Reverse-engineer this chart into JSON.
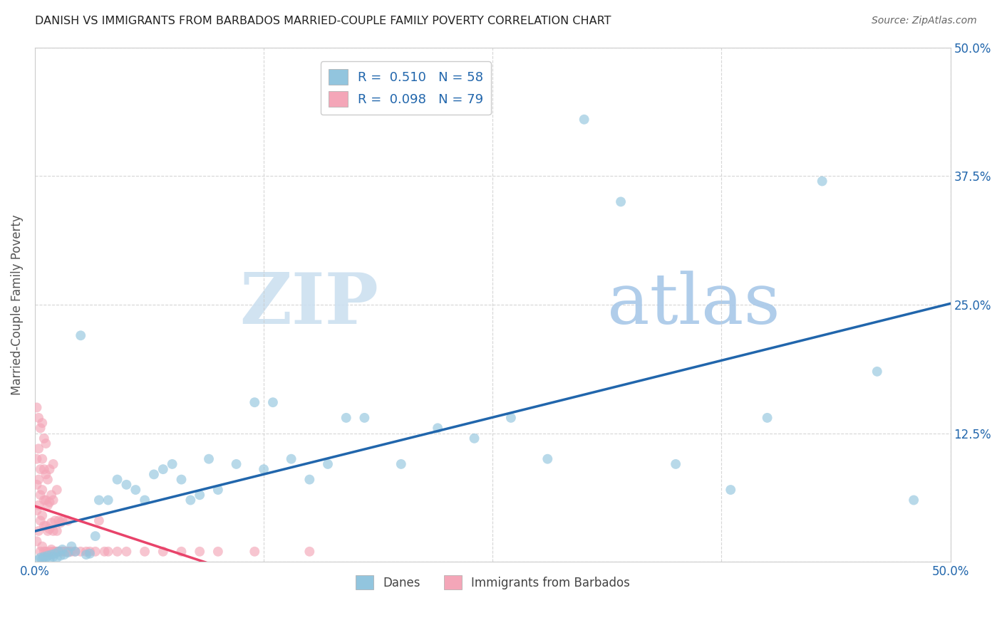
{
  "title": "DANISH VS IMMIGRANTS FROM BARBADOS MARRIED-COUPLE FAMILY POVERTY CORRELATION CHART",
  "source": "Source: ZipAtlas.com",
  "ylabel": "Married-Couple Family Poverty",
  "xlabel_danes": "Danes",
  "xlabel_barbados": "Immigrants from Barbados",
  "xlim": [
    0,
    0.5
  ],
  "ylim": [
    0,
    0.5
  ],
  "danes_R": 0.51,
  "danes_N": 58,
  "barbados_R": 0.098,
  "barbados_N": 79,
  "danes_color": "#92c5de",
  "barbados_color": "#f4a6b8",
  "danes_line_color": "#2166ac",
  "barbados_line_color": "#e8436a",
  "danes_x": [
    0.002,
    0.003,
    0.004,
    0.005,
    0.006,
    0.007,
    0.008,
    0.009,
    0.01,
    0.011,
    0.012,
    0.013,
    0.014,
    0.015,
    0.016,
    0.018,
    0.02,
    0.022,
    0.025,
    0.028,
    0.03,
    0.033,
    0.035,
    0.04,
    0.045,
    0.05,
    0.055,
    0.06,
    0.065,
    0.07,
    0.075,
    0.08,
    0.085,
    0.09,
    0.095,
    0.1,
    0.11,
    0.12,
    0.125,
    0.13,
    0.14,
    0.15,
    0.16,
    0.17,
    0.18,
    0.2,
    0.22,
    0.24,
    0.26,
    0.28,
    0.3,
    0.32,
    0.35,
    0.38,
    0.4,
    0.43,
    0.46,
    0.48
  ],
  "danes_y": [
    0.002,
    0.004,
    0.003,
    0.005,
    0.004,
    0.006,
    0.003,
    0.007,
    0.005,
    0.008,
    0.004,
    0.01,
    0.006,
    0.012,
    0.007,
    0.009,
    0.015,
    0.01,
    0.22,
    0.007,
    0.008,
    0.025,
    0.06,
    0.06,
    0.08,
    0.075,
    0.07,
    0.06,
    0.085,
    0.09,
    0.095,
    0.08,
    0.06,
    0.065,
    0.1,
    0.07,
    0.095,
    0.155,
    0.09,
    0.155,
    0.1,
    0.08,
    0.095,
    0.14,
    0.14,
    0.095,
    0.13,
    0.12,
    0.14,
    0.1,
    0.43,
    0.35,
    0.095,
    0.07,
    0.14,
    0.37,
    0.185,
    0.06
  ],
  "barbados_x": [
    0.001,
    0.001,
    0.001,
    0.001,
    0.001,
    0.002,
    0.002,
    0.002,
    0.002,
    0.002,
    0.003,
    0.003,
    0.003,
    0.003,
    0.003,
    0.004,
    0.004,
    0.004,
    0.004,
    0.004,
    0.005,
    0.005,
    0.005,
    0.005,
    0.005,
    0.006,
    0.006,
    0.006,
    0.006,
    0.006,
    0.007,
    0.007,
    0.007,
    0.007,
    0.008,
    0.008,
    0.008,
    0.008,
    0.009,
    0.009,
    0.009,
    0.01,
    0.01,
    0.01,
    0.01,
    0.011,
    0.011,
    0.012,
    0.012,
    0.012,
    0.013,
    0.013,
    0.014,
    0.014,
    0.015,
    0.015,
    0.016,
    0.017,
    0.018,
    0.018,
    0.019,
    0.02,
    0.022,
    0.025,
    0.028,
    0.03,
    0.033,
    0.035,
    0.038,
    0.04,
    0.045,
    0.05,
    0.06,
    0.07,
    0.08,
    0.09,
    0.1,
    0.12,
    0.15
  ],
  "barbados_y": [
    0.02,
    0.05,
    0.075,
    0.1,
    0.15,
    0.03,
    0.055,
    0.08,
    0.11,
    0.14,
    0.01,
    0.04,
    0.065,
    0.09,
    0.13,
    0.015,
    0.045,
    0.07,
    0.1,
    0.135,
    0.01,
    0.035,
    0.06,
    0.09,
    0.12,
    0.01,
    0.035,
    0.06,
    0.085,
    0.115,
    0.008,
    0.03,
    0.055,
    0.08,
    0.01,
    0.032,
    0.058,
    0.09,
    0.012,
    0.038,
    0.065,
    0.01,
    0.03,
    0.06,
    0.095,
    0.01,
    0.04,
    0.01,
    0.03,
    0.07,
    0.01,
    0.04,
    0.01,
    0.038,
    0.01,
    0.04,
    0.01,
    0.01,
    0.01,
    0.04,
    0.01,
    0.01,
    0.01,
    0.01,
    0.01,
    0.01,
    0.01,
    0.04,
    0.01,
    0.01,
    0.01,
    0.01,
    0.01,
    0.01,
    0.01,
    0.01,
    0.01,
    0.01,
    0.01
  ],
  "watermark_zip": "ZIP",
  "watermark_atlas": "atlas",
  "background_color": "#ffffff",
  "grid_color": "#cccccc"
}
